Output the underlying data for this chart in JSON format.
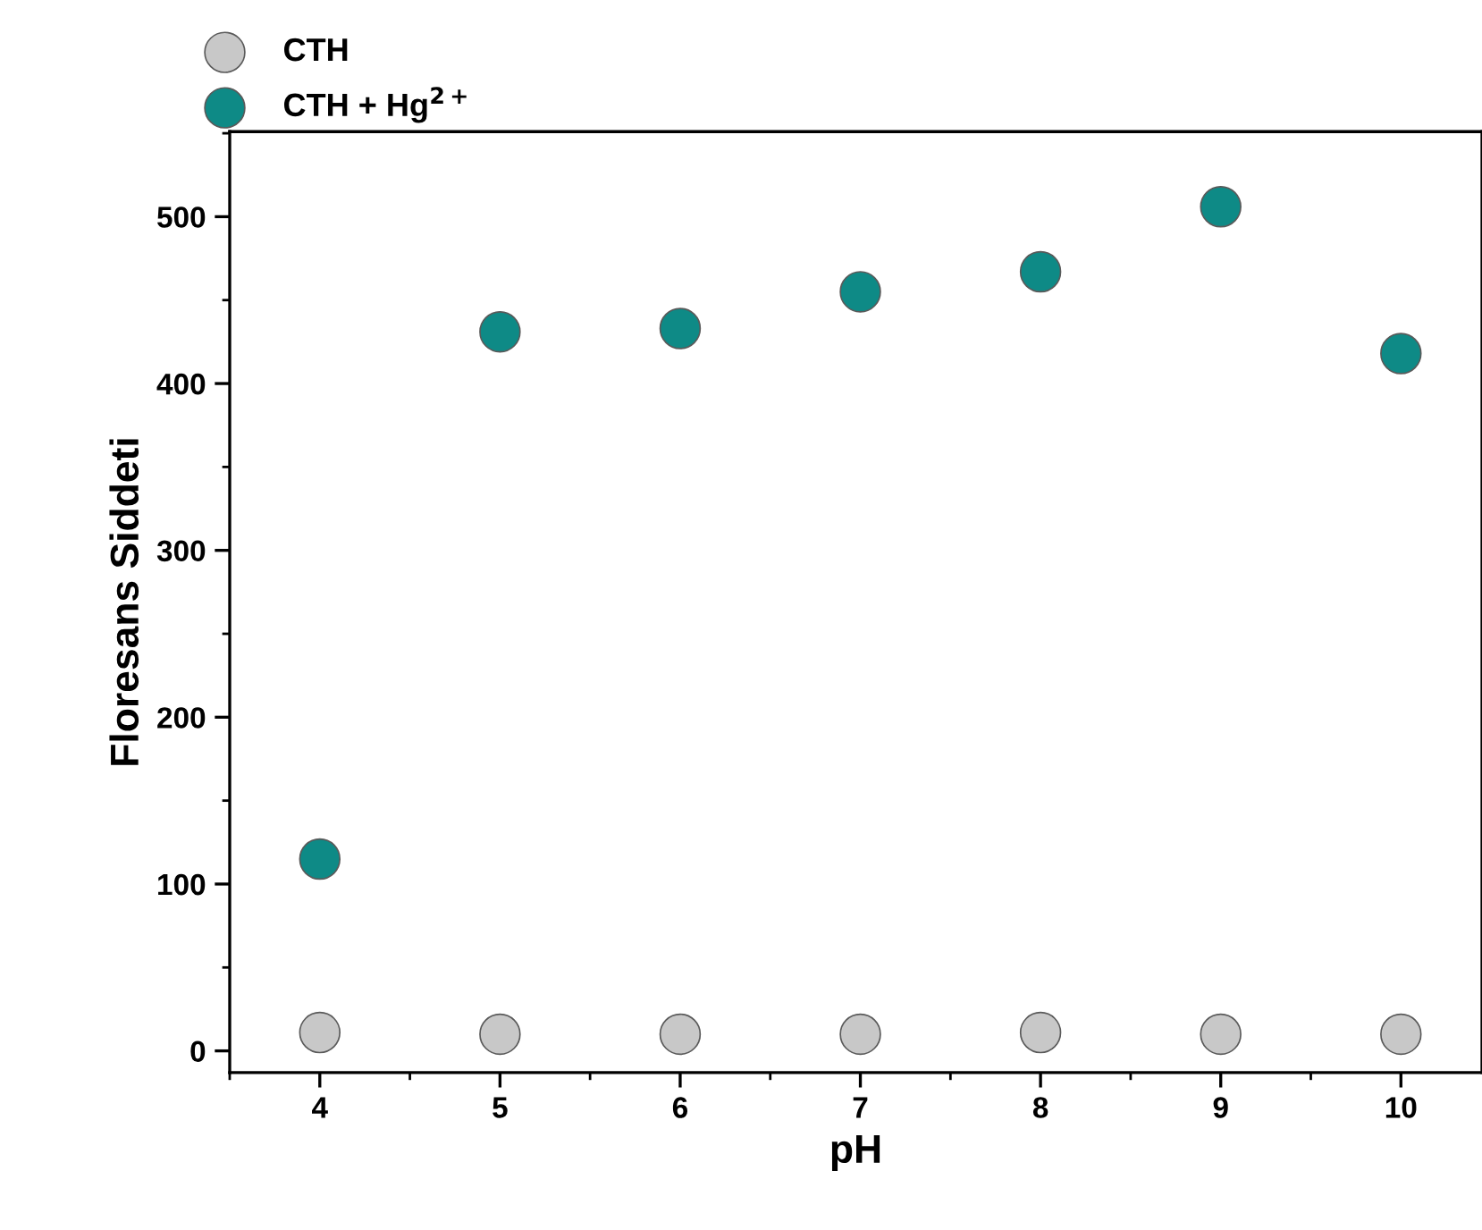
{
  "chart_data": {
    "type": "scatter",
    "xlabel": "pH",
    "ylabel": "Floresans Siddeti",
    "x": [
      4,
      5,
      6,
      7,
      8,
      9,
      10
    ],
    "series": [
      {
        "name": "CTH",
        "color": "#c8c8c8",
        "values": [
          11,
          10,
          10,
          10,
          11,
          10,
          10
        ]
      },
      {
        "name": "CTH + Hg$^{2+}$",
        "color": "#0e8a86",
        "values": [
          115,
          431,
          433,
          455,
          467,
          506,
          418
        ]
      }
    ],
    "xlim": [
      3.5,
      10.45
    ],
    "ylim": [
      -13,
      551
    ],
    "xticks": [
      4,
      5,
      6,
      7,
      8,
      9,
      10
    ],
    "yticks": [
      0,
      100,
      200,
      300,
      400,
      500
    ],
    "marker": "circle",
    "legend": "top left",
    "grid": false
  }
}
